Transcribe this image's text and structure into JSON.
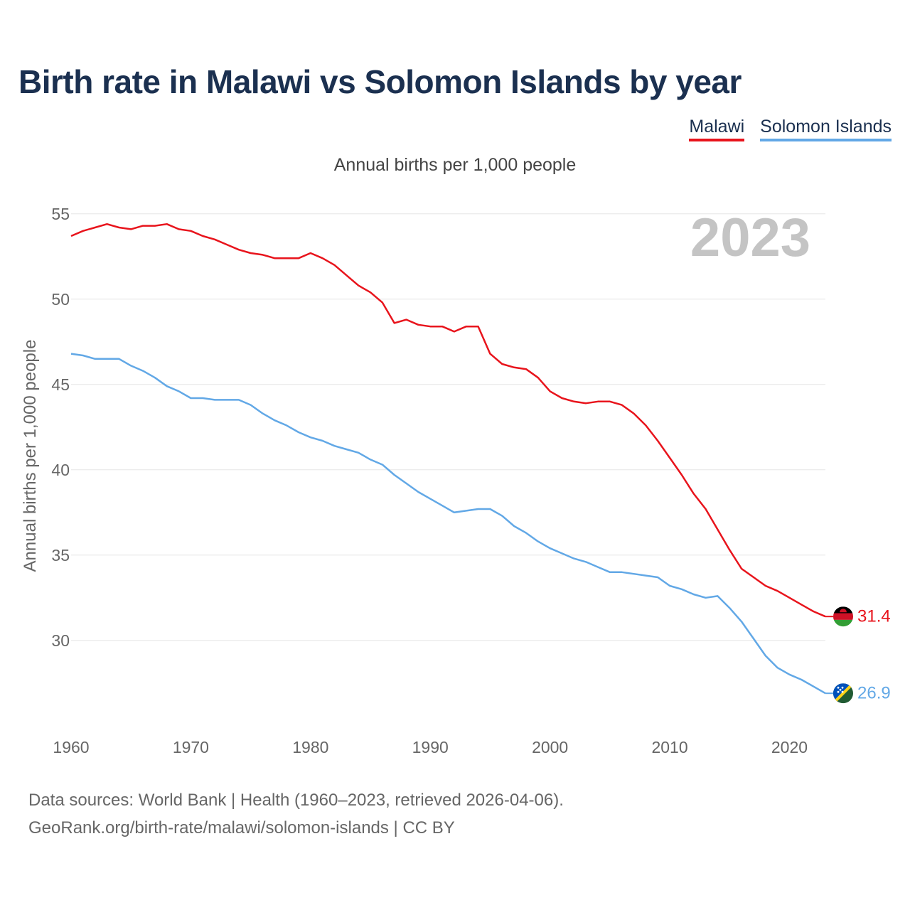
{
  "title": "Birth rate in Malawi vs Solomon Islands by year",
  "legend": {
    "malawi": "Malawi",
    "solomon": "Solomon Islands"
  },
  "colors": {
    "malawi": "#e8141c",
    "solomon": "#62a8e6",
    "title": "#1b3050"
  },
  "footer": {
    "line1": "Data sources: World Bank | Health (1960–2023, retrieved 2026-04-06).",
    "line2": "GeoRank.org/birth-rate/malawi/solomon-islands | CC BY"
  },
  "chart_data": {
    "type": "line",
    "title": "Birth rate in Malawi vs Solomon Islands by year",
    "subtitle": "Annual births per 1,000 people",
    "xlabel": "",
    "ylabel": "Annual births per 1,000 people",
    "year_label": "2023",
    "xlim": [
      1960,
      2023
    ],
    "ylim": [
      25.2,
      56.2
    ],
    "yticks": [
      30,
      35,
      40,
      45,
      50,
      55
    ],
    "xticks": [
      1960,
      1970,
      1980,
      1990,
      2000,
      2010,
      2020
    ],
    "grid": true,
    "legend_position": "top-right",
    "x": [
      1960,
      1961,
      1962,
      1963,
      1964,
      1965,
      1966,
      1967,
      1968,
      1969,
      1970,
      1971,
      1972,
      1973,
      1974,
      1975,
      1976,
      1977,
      1978,
      1979,
      1980,
      1981,
      1982,
      1983,
      1984,
      1985,
      1986,
      1987,
      1988,
      1989,
      1990,
      1991,
      1992,
      1993,
      1994,
      1995,
      1996,
      1997,
      1998,
      1999,
      2000,
      2001,
      2002,
      2003,
      2004,
      2005,
      2006,
      2007,
      2008,
      2009,
      2010,
      2011,
      2012,
      2013,
      2014,
      2015,
      2016,
      2017,
      2018,
      2019,
      2020,
      2021,
      2022,
      2023
    ],
    "series": [
      {
        "name": "Malawi",
        "end_label": "31.4",
        "values": [
          53.7,
          54.0,
          54.2,
          54.4,
          54.2,
          54.1,
          54.3,
          54.3,
          54.4,
          54.1,
          54.0,
          53.7,
          53.5,
          53.2,
          52.9,
          52.7,
          52.6,
          52.4,
          52.4,
          52.4,
          52.7,
          52.4,
          52.0,
          51.4,
          50.8,
          50.4,
          49.8,
          48.6,
          48.8,
          48.5,
          48.4,
          48.4,
          48.1,
          48.4,
          48.4,
          46.8,
          46.2,
          46.0,
          45.9,
          45.4,
          44.6,
          44.2,
          44.0,
          43.9,
          44.0,
          44.0,
          43.8,
          43.3,
          42.6,
          41.7,
          40.7,
          39.7,
          38.6,
          37.7,
          36.5,
          35.3,
          34.2,
          33.7,
          33.2,
          32.9,
          32.5,
          32.1,
          31.7,
          31.4
        ]
      },
      {
        "name": "Solomon Islands",
        "end_label": "26.9",
        "values": [
          46.8,
          46.7,
          46.5,
          46.5,
          46.5,
          46.1,
          45.8,
          45.4,
          44.9,
          44.6,
          44.2,
          44.2,
          44.1,
          44.1,
          44.1,
          43.8,
          43.3,
          42.9,
          42.6,
          42.2,
          41.9,
          41.7,
          41.4,
          41.2,
          41.0,
          40.6,
          40.3,
          39.7,
          39.2,
          38.7,
          38.3,
          37.9,
          37.5,
          37.6,
          37.7,
          37.7,
          37.3,
          36.7,
          36.3,
          35.8,
          35.4,
          35.1,
          34.8,
          34.6,
          34.3,
          34.0,
          34.0,
          33.9,
          33.8,
          33.7,
          33.2,
          33.0,
          32.7,
          32.5,
          32.6,
          31.9,
          31.1,
          30.1,
          29.1,
          28.4,
          28.0,
          27.7,
          27.3,
          26.9
        ]
      }
    ]
  }
}
